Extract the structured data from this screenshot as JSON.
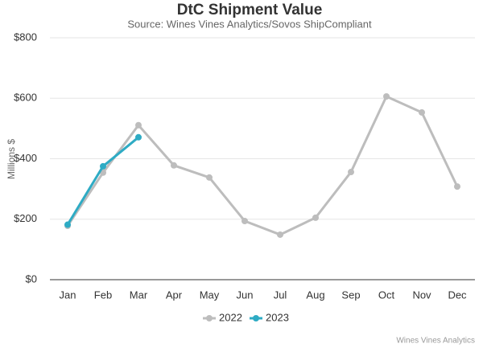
{
  "chart_data": {
    "type": "line",
    "title": "DtC Shipment Value",
    "subtitle": "Source: Wines Vines Analytics/Sovos ShipCompliant",
    "y_label": "Millions $",
    "credit": "Wines Vines Analytics",
    "categories": [
      "Jan",
      "Feb",
      "Mar",
      "Apr",
      "May",
      "Jun",
      "Jul",
      "Aug",
      "Sep",
      "Oct",
      "Nov",
      "Dec"
    ],
    "series": [
      {
        "name": "2022",
        "color": "#bdbdbd",
        "values": [
          178,
          354,
          511,
          378,
          338,
          194,
          149,
          205,
          356,
          606,
          553,
          308
        ]
      },
      {
        "name": "2023",
        "color": "#2eabc4",
        "values": [
          182,
          375,
          471,
          null,
          null,
          null,
          null,
          null,
          null,
          null,
          null,
          null
        ]
      }
    ],
    "ylim": [
      0,
      800
    ],
    "yticks": [
      {
        "value": 0,
        "label": "$0"
      },
      {
        "value": 200,
        "label": "$200"
      },
      {
        "value": 400,
        "label": "$400"
      },
      {
        "value": 600,
        "label": "$600"
      },
      {
        "value": 800,
        "label": "$800"
      }
    ],
    "grid": true,
    "legend": "bottom"
  }
}
